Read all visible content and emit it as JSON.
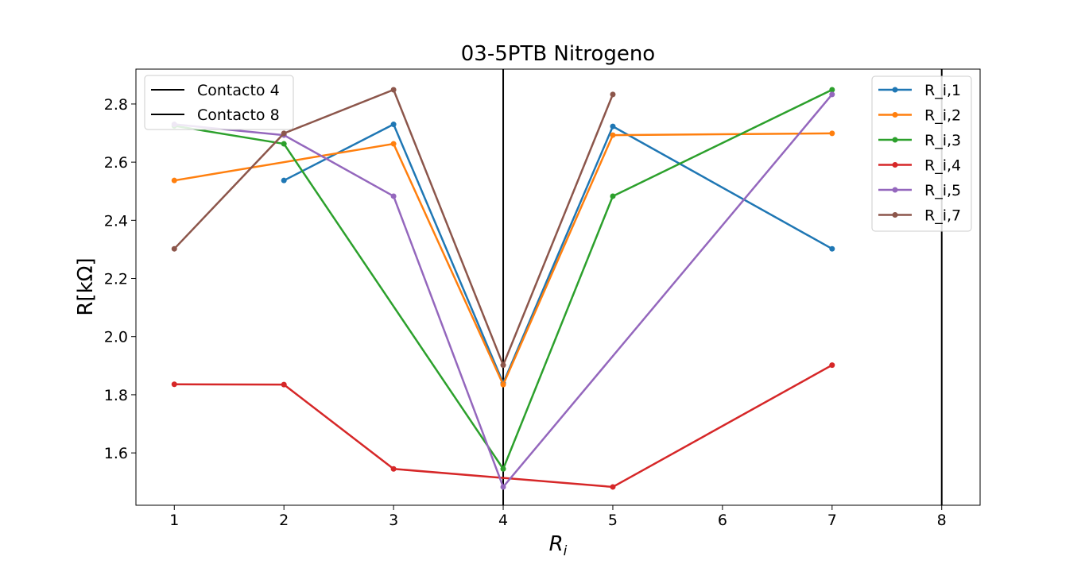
{
  "chart_data": {
    "type": "line",
    "title": "03-5PTB Nitrogeno",
    "xlabel": "R",
    "xlabel_subscript": "i",
    "ylabel": "R[kΩ]",
    "xlim": [
      0.65,
      8.35
    ],
    "ylim": [
      1.42,
      2.92
    ],
    "xticks": [
      1,
      2,
      3,
      4,
      5,
      6,
      7,
      8
    ],
    "yticks": [
      1.6,
      1.8,
      2.0,
      2.2,
      2.4,
      2.6,
      2.8
    ],
    "ytick_labels": [
      "1.6",
      "1.8",
      "2.0",
      "2.2",
      "2.4",
      "2.6",
      "2.8"
    ],
    "vlines": [
      {
        "name": "Contacto 4",
        "x": 4,
        "color": "#000000"
      },
      {
        "name": "Contacto 8",
        "x": 8,
        "color": "#000000"
      }
    ],
    "vline_legend_position": "top-left",
    "series_legend_position": "top-right",
    "series": [
      {
        "name": "R_i,1",
        "color": "#1f77b4",
        "x": [
          2,
          3,
          4,
          5,
          7
        ],
        "values": [
          2.537,
          2.73,
          1.84,
          2.723,
          2.302
        ]
      },
      {
        "name": "R_i,2",
        "color": "#ff7f0e",
        "x": [
          1,
          3,
          4,
          5,
          7
        ],
        "values": [
          2.537,
          2.663,
          1.835,
          2.693,
          2.699
        ]
      },
      {
        "name": "R_i,3",
        "color": "#2ca02c",
        "x": [
          1,
          2,
          4,
          5,
          7
        ],
        "values": [
          2.725,
          2.663,
          1.545,
          2.483,
          2.849
        ]
      },
      {
        "name": "R_i,4",
        "color": "#d62728",
        "x": [
          1,
          2,
          3,
          5,
          7
        ],
        "values": [
          1.836,
          1.835,
          1.545,
          1.483,
          1.902
        ]
      },
      {
        "name": "R_i,5",
        "color": "#9467bd",
        "x": [
          1,
          2,
          3,
          4,
          7
        ],
        "values": [
          2.73,
          2.693,
          2.483,
          1.483,
          2.833
        ]
      },
      {
        "name": "R_i,7",
        "color": "#8c564b",
        "x": [
          1,
          2,
          3,
          4,
          5
        ],
        "values": [
          2.302,
          2.699,
          2.849,
          1.902,
          2.833
        ]
      }
    ]
  }
}
